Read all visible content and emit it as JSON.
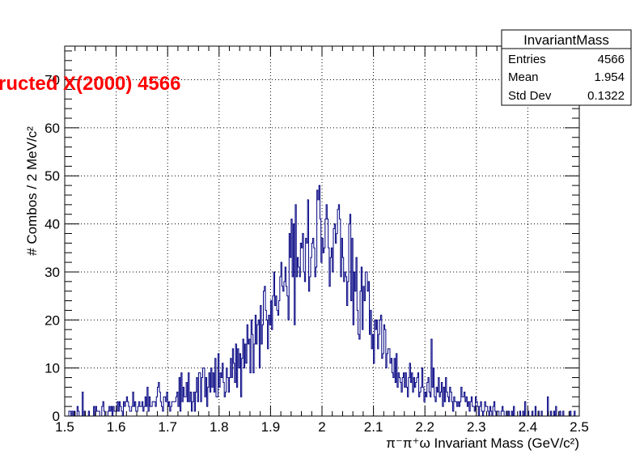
{
  "chart_data": {
    "type": "histogram",
    "title": "",
    "overlay_text": "ructed X(2000) 4566",
    "xlabel": "π⁻π⁺ω Invariant Mass (GeV/c²)",
    "ylabel": "# Combos / 2 MeV/c²",
    "xlim": [
      1.5,
      2.5
    ],
    "ylim": [
      0,
      77
    ],
    "bin_width": 0.002,
    "x_ticks": [
      "1.5",
      "1.6",
      "1.7",
      "1.8",
      "1.9",
      "2",
      "2.1",
      "2.2",
      "2.3",
      "2.4",
      "2.5"
    ],
    "y_ticks": [
      "0",
      "10",
      "20",
      "30",
      "40",
      "50",
      "60",
      "70"
    ],
    "grid": true,
    "line_color": "#000080",
    "overlay_color": "#ff0000",
    "stats": {
      "name": "InvariantMass",
      "entries_label": "Entries",
      "entries": "4566",
      "mean_label": "Mean",
      "mean": "1.954",
      "std_label": "Std Dev",
      "std": "0.1322"
    },
    "counts": [
      0,
      0,
      0,
      0,
      1,
      1,
      0,
      1,
      0,
      1,
      0,
      0,
      2,
      1,
      0,
      0,
      0,
      5,
      0,
      1,
      0,
      0,
      0,
      1,
      0,
      0,
      0,
      0,
      2,
      0,
      2,
      1,
      1,
      1,
      0,
      0,
      2,
      3,
      1,
      0,
      0,
      0,
      1,
      2,
      1,
      2,
      0,
      2,
      1,
      1,
      1,
      3,
      1,
      3,
      2,
      1,
      0,
      3,
      2,
      3,
      4,
      3,
      2,
      1,
      1,
      2,
      5,
      2,
      3,
      1,
      1,
      2,
      3,
      2,
      2,
      3,
      1,
      2,
      4,
      2,
      6,
      1,
      4,
      2,
      2,
      3,
      3,
      3,
      2,
      4,
      6,
      7,
      5,
      3,
      2,
      1,
      4,
      4,
      3,
      5,
      2,
      3,
      1,
      2,
      3,
      3,
      3,
      3,
      4,
      5,
      2,
      8,
      1,
      9,
      3,
      6,
      4,
      4,
      7,
      3,
      9,
      3,
      5,
      1,
      3,
      5,
      1,
      5,
      8,
      3,
      9,
      9,
      3,
      8,
      10,
      10,
      4,
      8,
      2,
      6,
      9,
      5,
      10,
      6,
      9,
      5,
      12,
      4,
      4,
      13,
      6,
      9,
      8,
      11,
      7,
      4,
      5,
      10,
      8,
      5,
      8,
      12,
      8,
      14,
      11,
      7,
      15,
      6,
      14,
      10,
      13,
      4,
      12,
      16,
      10,
      15,
      11,
      19,
      15,
      16,
      9,
      20,
      17,
      9,
      15,
      21,
      15,
      19,
      20,
      10,
      23,
      15,
      19,
      26,
      27,
      22,
      20,
      14,
      21,
      19,
      24,
      18,
      25,
      30,
      23,
      25,
      22,
      21,
      24,
      29,
      32,
      27,
      26,
      28,
      31,
      27,
      25,
      20,
      38,
      33,
      41,
      29,
      40,
      19,
      44,
      29,
      33,
      31,
      29,
      36,
      35,
      38,
      30,
      28,
      37,
      36,
      45,
      26,
      29,
      33,
      36,
      37,
      35,
      29,
      31,
      47,
      45,
      48,
      41,
      32,
      37,
      34,
      35,
      41,
      44,
      41,
      35,
      27,
      33,
      35,
      30,
      39,
      40,
      36,
      38,
      43,
      44,
      41,
      29,
      37,
      33,
      28,
      30,
      29,
      23,
      28,
      40,
      42,
      24,
      37,
      19,
      30,
      26,
      33,
      22,
      17,
      16,
      26,
      31,
      18,
      27,
      24,
      30,
      30,
      26,
      28,
      17,
      22,
      14,
      17,
      11,
      20,
      18,
      20,
      14,
      17,
      20,
      21,
      12,
      13,
      19,
      18,
      10,
      13,
      14,
      14,
      11,
      12,
      9,
      8,
      12,
      7,
      13,
      6,
      9,
      8,
      7,
      5,
      8,
      9,
      6,
      9,
      6,
      4,
      8,
      11,
      7,
      9,
      5,
      8,
      6,
      7,
      8,
      9,
      4,
      5,
      6,
      10,
      6,
      3,
      5,
      4,
      7,
      8,
      5,
      4,
      16,
      6,
      10,
      4,
      3,
      6,
      5,
      8,
      4,
      5,
      7,
      2,
      6,
      3,
      8,
      5,
      4,
      3,
      6,
      5,
      3,
      1,
      4,
      3,
      3,
      2,
      3,
      2,
      3,
      6,
      4,
      4,
      5,
      3,
      4,
      2,
      3,
      1,
      3,
      4,
      2,
      2,
      1,
      4,
      3,
      2,
      0,
      2,
      3,
      1,
      0,
      1,
      3,
      2,
      2,
      1,
      0,
      2,
      1,
      0,
      2,
      3,
      1,
      0,
      1,
      1,
      0,
      0,
      1,
      2,
      1,
      0,
      0,
      1,
      0,
      1,
      0,
      0,
      1,
      0,
      2,
      0,
      0,
      0,
      0,
      0,
      1,
      0,
      0,
      1,
      0,
      3,
      0,
      0,
      1,
      0,
      0,
      0,
      1,
      0,
      0,
      2,
      0,
      0,
      1,
      0,
      0,
      1,
      0,
      0,
      0,
      0,
      0,
      4,
      0,
      0,
      1,
      0,
      0,
      1,
      0,
      2,
      0,
      0,
      0,
      1,
      0,
      0,
      1,
      0,
      0,
      0,
      0,
      0,
      0,
      1,
      0,
      0,
      0,
      1,
      0,
      0,
      0,
      0,
      1,
      0,
      0,
      0,
      0,
      0,
      0,
      0,
      0,
      0,
      0,
      0,
      0,
      0,
      0,
      0
    ]
  }
}
